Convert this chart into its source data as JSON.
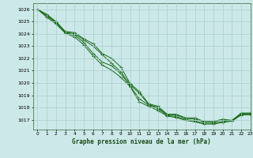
{
  "title": "Graphe pression niveau de la mer (hPa)",
  "bg_color": "#cce8e8",
  "grid_color": "#aacfcf",
  "line_color": "#1a6b1a",
  "xlim": [
    -0.5,
    23
  ],
  "ylim": [
    1016.2,
    1026.5
  ],
  "yticks": [
    1017,
    1018,
    1019,
    1020,
    1021,
    1022,
    1023,
    1024,
    1025,
    1026
  ],
  "xticks": [
    0,
    1,
    2,
    3,
    4,
    5,
    6,
    7,
    8,
    9,
    10,
    11,
    12,
    13,
    14,
    15,
    16,
    17,
    18,
    19,
    20,
    21,
    22,
    23
  ],
  "series": [
    [
      1026.0,
      1025.6,
      1025.0,
      1024.2,
      1024.1,
      1023.6,
      1023.2,
      1022.4,
      1022.0,
      1021.3,
      1019.95,
      1019.3,
      1018.3,
      1018.1,
      1017.45,
      1017.45,
      1017.15,
      1017.15,
      1016.85,
      1016.85,
      1017.05,
      1016.95,
      1017.55,
      1017.55
    ],
    [
      1026.0,
      1025.5,
      1024.95,
      1024.15,
      1024.0,
      1023.5,
      1023.0,
      1022.3,
      1021.6,
      1020.9,
      1019.85,
      1019.15,
      1018.25,
      1018.0,
      1017.42,
      1017.38,
      1017.1,
      1017.05,
      1016.82,
      1016.8,
      1017.0,
      1016.9,
      1017.5,
      1017.5
    ],
    [
      1026.0,
      1025.45,
      1024.9,
      1024.1,
      1023.9,
      1023.3,
      1022.4,
      1021.7,
      1021.4,
      1020.75,
      1019.75,
      1018.7,
      1018.2,
      1017.9,
      1017.35,
      1017.25,
      1017.0,
      1016.9,
      1016.7,
      1016.7,
      1016.85,
      1016.95,
      1017.45,
      1017.45
    ],
    [
      1026.0,
      1025.35,
      1024.8,
      1024.05,
      1023.75,
      1023.1,
      1022.2,
      1021.45,
      1021.05,
      1020.45,
      1019.7,
      1018.45,
      1018.1,
      1017.75,
      1017.3,
      1017.18,
      1016.95,
      1016.82,
      1016.65,
      1016.65,
      1016.78,
      1016.88,
      1017.38,
      1017.42
    ]
  ]
}
